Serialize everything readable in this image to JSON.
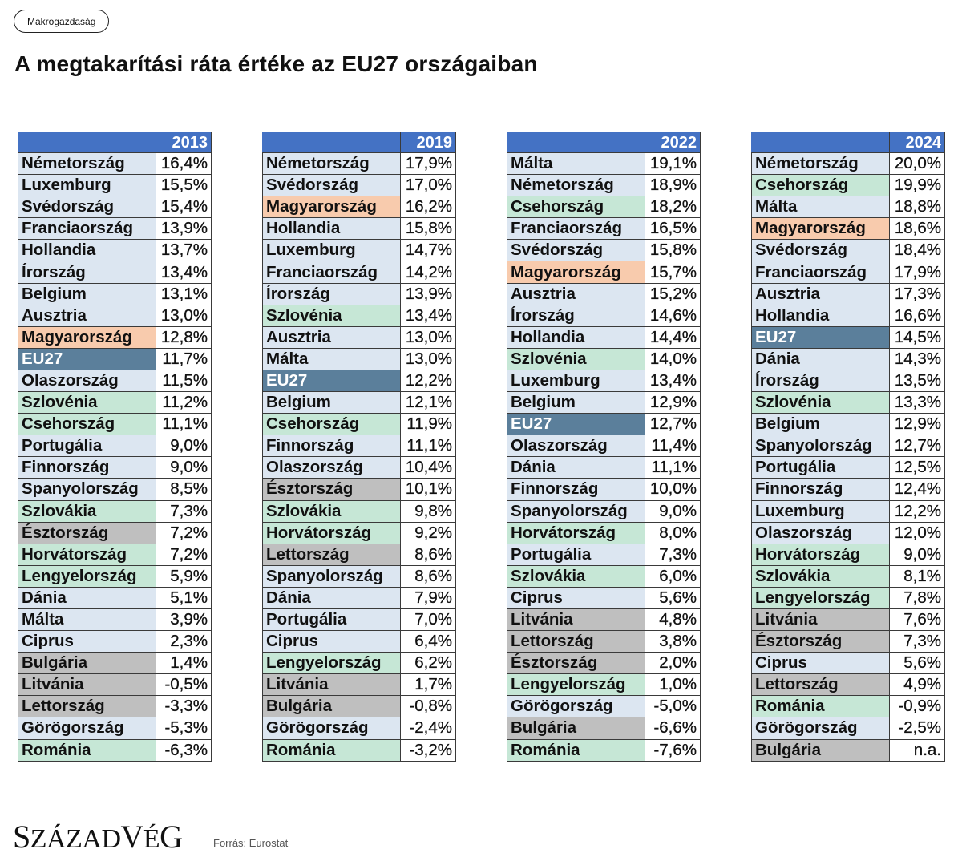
{
  "category_tag": "Makrogazdaság",
  "title": "A megtakarítási ráta értéke az EU27 országaiban",
  "source": "Forrás: Eurostat",
  "logo": "SZÁZADVÉG",
  "colors": {
    "header": "#4472c4",
    "country_default": "#dce6f1",
    "hungary": "#f8cbad",
    "eu27": "#5b7f9b",
    "green_group": "#c6e7d6",
    "grey_group": "#bfbfbf"
  },
  "highlight_groups": {
    "hu": [
      "Magyarország"
    ],
    "eu": [
      "EU27"
    ],
    "green": [
      "Szlovénia",
      "Csehország",
      "Szlovákia",
      "Horvátország",
      "Lengyelország",
      "Románia"
    ],
    "grey": [
      "Észtország",
      "Lettország",
      "Litvánia",
      "Bulgária"
    ]
  },
  "tables": [
    {
      "year": "2013",
      "rows": [
        [
          "Németország",
          "16,4%"
        ],
        [
          "Luxemburg",
          "15,5%"
        ],
        [
          "Svédország",
          "15,4%"
        ],
        [
          "Franciaország",
          "13,9%"
        ],
        [
          "Hollandia",
          "13,7%"
        ],
        [
          "Írország",
          "13,4%"
        ],
        [
          "Belgium",
          "13,1%"
        ],
        [
          "Ausztria",
          "13,0%"
        ],
        [
          "Magyarország",
          "12,8%"
        ],
        [
          "EU27",
          "11,7%"
        ],
        [
          "Olaszország",
          "11,5%"
        ],
        [
          "Szlovénia",
          "11,2%"
        ],
        [
          "Csehország",
          "11,1%"
        ],
        [
          "Portugália",
          "9,0%"
        ],
        [
          "Finnország",
          "9,0%"
        ],
        [
          "Spanyolország",
          "8,5%"
        ],
        [
          "Szlovákia",
          "7,3%"
        ],
        [
          "Észtország",
          "7,2%"
        ],
        [
          "Horvátország",
          "7,2%"
        ],
        [
          "Lengyelország",
          "5,9%"
        ],
        [
          "Dánia",
          "5,1%"
        ],
        [
          "Málta",
          "3,9%"
        ],
        [
          "Ciprus",
          "2,3%"
        ],
        [
          "Bulgária",
          "1,4%"
        ],
        [
          "Litvánia",
          "-0,5%"
        ],
        [
          "Lettország",
          "-3,3%"
        ],
        [
          "Görögország",
          "-5,3%"
        ],
        [
          "Románia",
          "-6,3%"
        ]
      ]
    },
    {
      "year": "2019",
      "rows": [
        [
          "Németország",
          "17,9%"
        ],
        [
          "Svédország",
          "17,0%"
        ],
        [
          "Magyarország",
          "16,2%"
        ],
        [
          "Hollandia",
          "15,8%"
        ],
        [
          "Luxemburg",
          "14,7%"
        ],
        [
          "Franciaország",
          "14,2%"
        ],
        [
          "Írország",
          "13,9%"
        ],
        [
          "Szlovénia",
          "13,4%"
        ],
        [
          "Ausztria",
          "13,0%"
        ],
        [
          "Málta",
          "13,0%"
        ],
        [
          "EU27",
          "12,2%"
        ],
        [
          "Belgium",
          "12,1%"
        ],
        [
          "Csehország",
          "11,9%"
        ],
        [
          "Finnország",
          "11,1%"
        ],
        [
          "Olaszország",
          "10,4%"
        ],
        [
          "Észtország",
          "10,1%"
        ],
        [
          "Szlovákia",
          "9,8%"
        ],
        [
          "Horvátország",
          "9,2%"
        ],
        [
          "Lettország",
          "8,6%"
        ],
        [
          "Spanyolország",
          "8,6%"
        ],
        [
          "Dánia",
          "7,9%"
        ],
        [
          "Portugália",
          "7,0%"
        ],
        [
          "Ciprus",
          "6,4%"
        ],
        [
          "Lengyelország",
          "6,2%"
        ],
        [
          "Litvánia",
          "1,7%"
        ],
        [
          "Bulgária",
          "-0,8%"
        ],
        [
          "Görögország",
          "-2,4%"
        ],
        [
          "Románia",
          "-3,2%"
        ]
      ]
    },
    {
      "year": "2022",
      "rows": [
        [
          "Málta",
          "19,1%"
        ],
        [
          "Németország",
          "18,9%"
        ],
        [
          "Csehország",
          "18,2%"
        ],
        [
          "Franciaország",
          "16,5%"
        ],
        [
          "Svédország",
          "15,8%"
        ],
        [
          "Magyarország",
          "15,7%"
        ],
        [
          "Ausztria",
          "15,2%"
        ],
        [
          "Írország",
          "14,6%"
        ],
        [
          "Hollandia",
          "14,4%"
        ],
        [
          "Szlovénia",
          "14,0%"
        ],
        [
          "Luxemburg",
          "13,4%"
        ],
        [
          "Belgium",
          "12,9%"
        ],
        [
          "EU27",
          "12,7%"
        ],
        [
          "Olaszország",
          "11,4%"
        ],
        [
          "Dánia",
          "11,1%"
        ],
        [
          "Finnország",
          "10,0%"
        ],
        [
          "Spanyolország",
          "9,0%"
        ],
        [
          "Horvátország",
          "8,0%"
        ],
        [
          "Portugália",
          "7,3%"
        ],
        [
          "Szlovákia",
          "6,0%"
        ],
        [
          "Ciprus",
          "5,6%"
        ],
        [
          "Litvánia",
          "4,8%"
        ],
        [
          "Lettország",
          "3,8%"
        ],
        [
          "Észtország",
          "2,0%"
        ],
        [
          "Lengyelország",
          "1,0%"
        ],
        [
          "Görögország",
          "-5,0%"
        ],
        [
          "Bulgária",
          "-6,6%"
        ],
        [
          "Románia",
          "-7,6%"
        ]
      ]
    },
    {
      "year": "2024",
      "rows": [
        [
          "Németország",
          "20,0%"
        ],
        [
          "Csehország",
          "19,9%"
        ],
        [
          "Málta",
          "18,8%"
        ],
        [
          "Magyarország",
          "18,6%"
        ],
        [
          "Svédország",
          "18,4%"
        ],
        [
          "Franciaország",
          "17,9%"
        ],
        [
          "Ausztria",
          "17,3%"
        ],
        [
          "Hollandia",
          "16,6%"
        ],
        [
          "EU27",
          "14,5%"
        ],
        [
          "Dánia",
          "14,3%"
        ],
        [
          "Írország",
          "13,5%"
        ],
        [
          "Szlovénia",
          "13,3%"
        ],
        [
          "Belgium",
          "12,9%"
        ],
        [
          "Spanyolország",
          "12,7%"
        ],
        [
          "Portugália",
          "12,5%"
        ],
        [
          "Finnország",
          "12,4%"
        ],
        [
          "Luxemburg",
          "12,2%"
        ],
        [
          "Olaszország",
          "12,0%"
        ],
        [
          "Horvátország",
          "9,0%"
        ],
        [
          "Szlovákia",
          "8,1%"
        ],
        [
          "Lengyelország",
          "7,8%"
        ],
        [
          "Litvánia",
          "7,6%"
        ],
        [
          "Észtország",
          "7,3%"
        ],
        [
          "Ciprus",
          "5,6%"
        ],
        [
          "Lettország",
          "4,9%"
        ],
        [
          "Románia",
          "-0,9%"
        ],
        [
          "Görögország",
          "-2,5%"
        ],
        [
          "Bulgária",
          "n.a."
        ]
      ]
    }
  ]
}
